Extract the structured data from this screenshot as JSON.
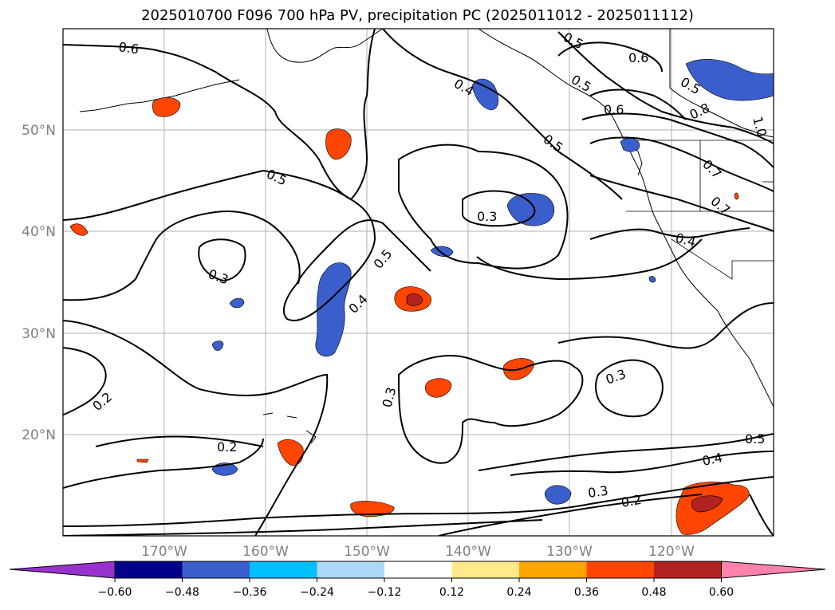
{
  "title": "2025010700 F096 700 hPa PV, precipitation PC (2025011012 - 2025011112)",
  "map": {
    "lon_ticks": [
      "170°W",
      "160°W",
      "150°W",
      "140°W",
      "130°W",
      "120°W"
    ],
    "lat_ticks": [
      "50°N",
      "40°N",
      "30°N",
      "20°N"
    ],
    "contour_labels": [
      "0.6",
      "0.5",
      "0.5",
      "0.5",
      "0.5",
      "0.6",
      "0.6",
      "0.4",
      "0.5",
      "0.8",
      "1.0",
      "0.7",
      "0.7",
      "0.3",
      "0.3",
      "0.5",
      "0.4",
      "0.4",
      "0.2",
      "0.3",
      "0.3",
      "0.2",
      "0.5",
      "0.4",
      "0.3",
      "0.2"
    ]
  },
  "colorbar": {
    "ticks": [
      "−0.60",
      "−0.48",
      "−0.36",
      "−0.24",
      "−0.12",
      "0.12",
      "0.24",
      "0.36",
      "0.48",
      "0.60"
    ],
    "colors": [
      "#9932cc",
      "#00008b",
      "#3a5fcd",
      "#00bfff",
      "#add8f6",
      "#ffffff",
      "#ffe98a",
      "#ffa500",
      "#ff4500",
      "#b22222",
      "#ff82ab"
    ]
  }
}
